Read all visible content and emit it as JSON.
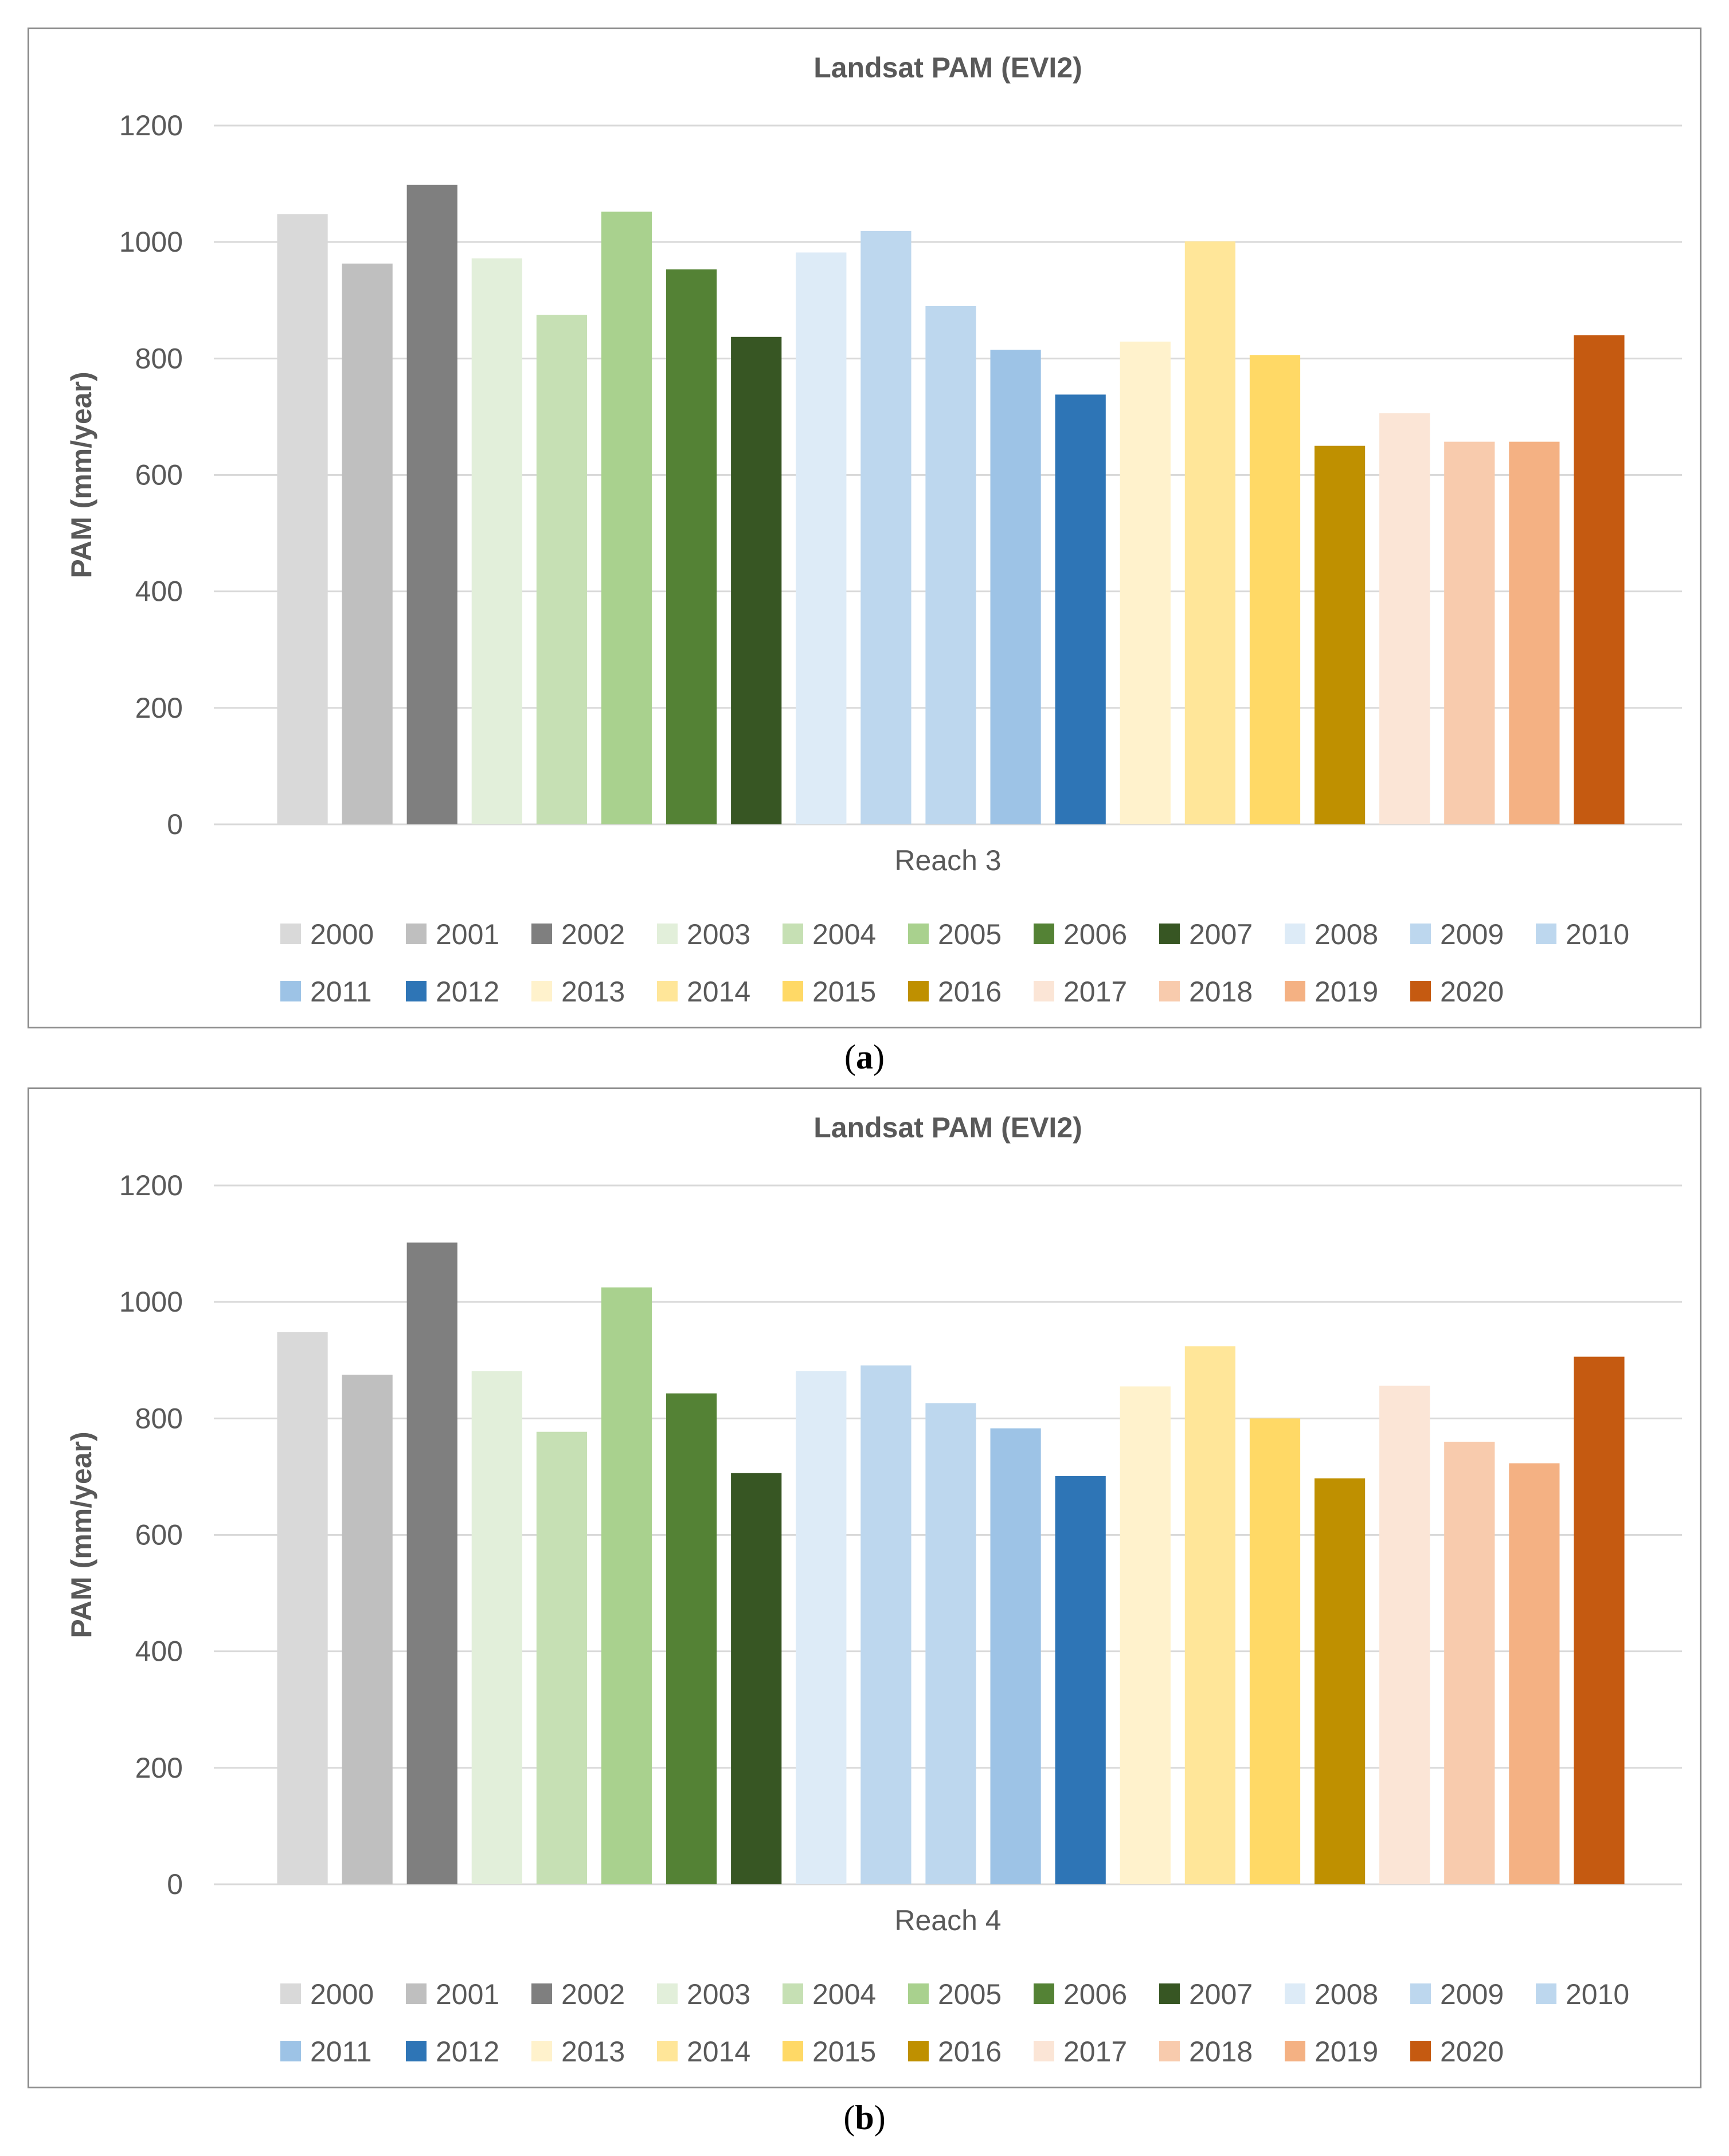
{
  "chart_data": [
    {
      "type": "bar",
      "title": "Landsat PAM (EVI2)",
      "xlabel": "Reach 3",
      "ylabel": "PAM (mm/year)",
      "ylim": [
        0,
        1200
      ],
      "yticks": [
        0,
        200,
        400,
        600,
        800,
        1000,
        1200
      ],
      "grid": true,
      "legend_position": "bottom",
      "series": [
        {
          "name": "2000",
          "value": 1048,
          "color": "#d9d9d9"
        },
        {
          "name": "2001",
          "value": 963,
          "color": "#bfbfbf"
        },
        {
          "name": "2002",
          "value": 1098,
          "color": "#7f7f7f"
        },
        {
          "name": "2003",
          "value": 972,
          "color": "#e2efda"
        },
        {
          "name": "2004",
          "value": 875,
          "color": "#c6e0b4"
        },
        {
          "name": "2005",
          "value": 1052,
          "color": "#a9d18e"
        },
        {
          "name": "2006",
          "value": 953,
          "color": "#548235"
        },
        {
          "name": "2007",
          "value": 837,
          "color": "#375623"
        },
        {
          "name": "2008",
          "value": 982,
          "color": "#ddebf7"
        },
        {
          "name": "2009",
          "value": 1019,
          "color": "#bdd7ee"
        },
        {
          "name": "2010",
          "value": 890,
          "color": "#bdd7ee"
        },
        {
          "name": "2011",
          "value": 815,
          "color": "#9dc3e6"
        },
        {
          "name": "2012",
          "value": 738,
          "color": "#2e75b6"
        },
        {
          "name": "2013",
          "value": 829,
          "color": "#fff2cc"
        },
        {
          "name": "2014",
          "value": 1001,
          "color": "#ffe699"
        },
        {
          "name": "2015",
          "value": 806,
          "color": "#ffd966"
        },
        {
          "name": "2016",
          "value": 650,
          "color": "#bf9000"
        },
        {
          "name": "2017",
          "value": 706,
          "color": "#fbe5d6"
        },
        {
          "name": "2018",
          "value": 657,
          "color": "#f8cbad"
        },
        {
          "name": "2019",
          "value": 657,
          "color": "#f4b183"
        },
        {
          "name": "2020",
          "value": 840,
          "color": "#c55a11"
        }
      ]
    },
    {
      "type": "bar",
      "title": "Landsat PAM (EVI2)",
      "xlabel": "Reach 4",
      "ylabel": "PAM (mm/year)",
      "ylim": [
        0,
        1200
      ],
      "yticks": [
        0,
        200,
        400,
        600,
        800,
        1000,
        1200
      ],
      "grid": true,
      "legend_position": "bottom",
      "series": [
        {
          "name": "2000",
          "value": 948,
          "color": "#d9d9d9"
        },
        {
          "name": "2001",
          "value": 875,
          "color": "#bfbfbf"
        },
        {
          "name": "2002",
          "value": 1102,
          "color": "#7f7f7f"
        },
        {
          "name": "2003",
          "value": 881,
          "color": "#e2efda"
        },
        {
          "name": "2004",
          "value": 777,
          "color": "#c6e0b4"
        },
        {
          "name": "2005",
          "value": 1025,
          "color": "#a9d18e"
        },
        {
          "name": "2006",
          "value": 843,
          "color": "#548235"
        },
        {
          "name": "2007",
          "value": 706,
          "color": "#375623"
        },
        {
          "name": "2008",
          "value": 881,
          "color": "#ddebf7"
        },
        {
          "name": "2009",
          "value": 891,
          "color": "#bdd7ee"
        },
        {
          "name": "2010",
          "value": 826,
          "color": "#bdd7ee"
        },
        {
          "name": "2011",
          "value": 783,
          "color": "#9dc3e6"
        },
        {
          "name": "2012",
          "value": 701,
          "color": "#2e75b6"
        },
        {
          "name": "2013",
          "value": 855,
          "color": "#fff2cc"
        },
        {
          "name": "2014",
          "value": 924,
          "color": "#ffe699"
        },
        {
          "name": "2015",
          "value": 800,
          "color": "#ffd966"
        },
        {
          "name": "2016",
          "value": 697,
          "color": "#bf9000"
        },
        {
          "name": "2017",
          "value": 856,
          "color": "#fbe5d6"
        },
        {
          "name": "2018",
          "value": 760,
          "color": "#f8cbad"
        },
        {
          "name": "2019",
          "value": 723,
          "color": "#f4b183"
        },
        {
          "name": "2020",
          "value": 906,
          "color": "#c55a11"
        }
      ]
    }
  ],
  "captions": [
    "a",
    "b"
  ]
}
